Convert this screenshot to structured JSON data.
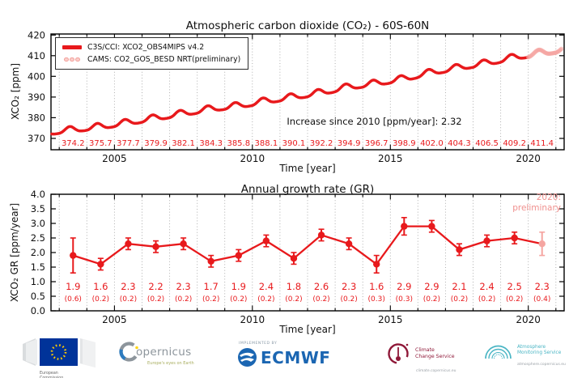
{
  "colors": {
    "main_red": "#e8191c",
    "preliminary_pink": "#f5a5a1",
    "annotation_pink": "#f0908e",
    "grid_grey": "#a6a6a6",
    "axis_black": "#000000",
    "eu_blue": "#003399",
    "eu_star_yellow": "#ffcc00",
    "copernicus_grey": "#8d959c",
    "copernicus_tagline_olive": "#a8ad5e",
    "ecmwf_blue": "#1b66b2",
    "climate_service_maroon": "#8f1838",
    "atmosphere_service_teal": "#4ab5c4"
  },
  "chart_data": [
    {
      "type": "line",
      "title": "Atmospheric carbon dioxide (CO₂) - 60S-60N",
      "xlabel": "Time [year]",
      "ylabel": "XCO₂ [ppm]",
      "xlim": [
        2002.7,
        2021.3
      ],
      "ylim": [
        364.5,
        420.5
      ],
      "yticks": [
        "370",
        "380",
        "390",
        "400",
        "410",
        "420"
      ],
      "xticks": [
        "2005",
        "2010",
        "2015",
        "2020"
      ],
      "grid": "vertical-dotted-every-year",
      "legend_position": "upper-left",
      "annotation": "Increase since 2010 [ppm/year]: 2.32",
      "increase_since_2010_ppm_per_year": 2.32,
      "series": [
        {
          "name": "C3S/CCI: XCO2_OBS4MIPS v4.2",
          "style": "thick-solid-line",
          "color_key": "main_red",
          "years": [
            2003,
            2004,
            2005,
            2006,
            2007,
            2008,
            2009,
            2010,
            2011,
            2012,
            2013,
            2014,
            2015,
            2016,
            2017,
            2018,
            2019,
            2020
          ],
          "annual_means": [
            374.2,
            375.7,
            377.7,
            379.9,
            382.1,
            384.3,
            385.8,
            388.1,
            390.1,
            392.2,
            394.9,
            396.7,
            398.9,
            402.0,
            404.3,
            406.5,
            409.2,
            411.4
          ],
          "seasonal_peak_to_trough_ppm": 2.8,
          "coverage": [
            2002.7,
            2020.0
          ]
        },
        {
          "name": "CAMS: CO2_GOS_BESD NRT(preliminary)",
          "style": "dots",
          "color_key": "preliminary_pink",
          "coverage": [
            2020.0,
            2021.2
          ]
        }
      ],
      "annual_labels": [
        "374.2",
        "375.7",
        "377.7",
        "379.9",
        "382.1",
        "384.3",
        "385.8",
        "388.1",
        "390.1",
        "392.2",
        "394.9",
        "396.7",
        "398.9",
        "402.0",
        "404.3",
        "406.5",
        "409.2",
        "411.4"
      ]
    },
    {
      "type": "line",
      "title": "Annual growth rate (GR)",
      "xlabel": "Time [year]",
      "ylabel": "XCO₂ GR [ppm/year]",
      "xlim": [
        2002.7,
        2021.3
      ],
      "ylim": [
        0.0,
        4.0
      ],
      "yticks": [
        "4.0",
        "3.5",
        "3.0",
        "2.5",
        "2.0",
        "1.5",
        "1.0",
        "0.5",
        "0.0"
      ],
      "xticks": [
        "2005",
        "2010",
        "2015",
        "2020"
      ],
      "grid": "vertical-dotted-every-year",
      "categories": [
        2003,
        2004,
        2005,
        2006,
        2007,
        2008,
        2009,
        2010,
        2011,
        2012,
        2013,
        2014,
        2015,
        2016,
        2017,
        2018,
        2019,
        2020
      ],
      "values": [
        1.9,
        1.6,
        2.3,
        2.2,
        2.3,
        1.7,
        1.9,
        2.4,
        1.8,
        2.6,
        2.3,
        1.6,
        2.9,
        2.9,
        2.1,
        2.4,
        2.5,
        2.3
      ],
      "errors": [
        0.6,
        0.2,
        0.2,
        0.2,
        0.2,
        0.2,
        0.2,
        0.2,
        0.2,
        0.2,
        0.2,
        0.3,
        0.3,
        0.2,
        0.2,
        0.2,
        0.2,
        0.4
      ],
      "preliminary_last_point": true,
      "annotation_line1": "2020:",
      "annotation_line2": "preliminary"
    }
  ],
  "footer": {
    "ec": {
      "line1": "European",
      "line2": "Commission"
    },
    "copernicus": {
      "name": "opernicus",
      "tagline": "Europe's eyes on Earth"
    },
    "ecmwf": {
      "implemented_by": "IMPLEMENTED BY",
      "name": "ECMWF"
    },
    "ccs": {
      "line1": "Climate",
      "line2": "Change Service",
      "url": "climate.copernicus.eu"
    },
    "ams": {
      "line1": "Atmosphere",
      "line2": "Monitoring Service",
      "url": "atmosphere.copernicus.eu"
    }
  }
}
